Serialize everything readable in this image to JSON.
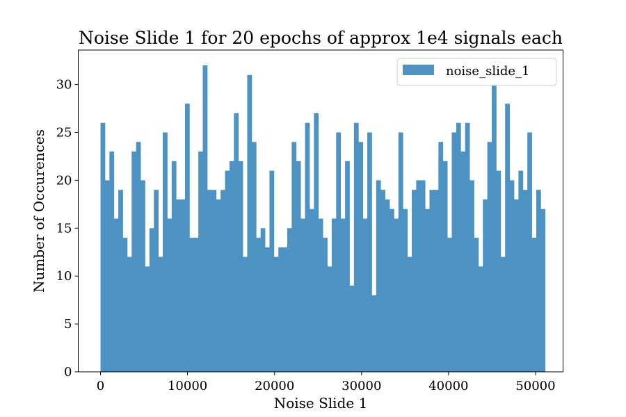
{
  "chart_data": {
    "type": "bar",
    "title": "Noise Slide 1 for 20 epochs of approx 1e4 signals each",
    "xlabel": "Noise Slide 1",
    "ylabel": "Number of Occurences",
    "xlim": [
      -2560,
      53160
    ],
    "ylim": [
      0,
      33.6
    ],
    "x_ticks": [
      0,
      10000,
      20000,
      30000,
      40000,
      50000
    ],
    "y_ticks": [
      0,
      5,
      10,
      15,
      20,
      25,
      30
    ],
    "bin_start": 0,
    "bin_end": 51100,
    "bar_color": "#4c93c3",
    "legend_position": "top-right",
    "series": [
      {
        "name": "noise_slide_1",
        "values": [
          26,
          20,
          23,
          16,
          19,
          14,
          12,
          23,
          24,
          20,
          11,
          15,
          19,
          12,
          25,
          16,
          22,
          18,
          18,
          28,
          14,
          14,
          23,
          32,
          19,
          19,
          18,
          19,
          21,
          22,
          27,
          22,
          12,
          31,
          24,
          14,
          15,
          13,
          21,
          12,
          13,
          13,
          15,
          24,
          22,
          16,
          26,
          17,
          27,
          16,
          14,
          11,
          16,
          25,
          16,
          22,
          9,
          26,
          24,
          16,
          25,
          8,
          20,
          19,
          18,
          17,
          16,
          25,
          17,
          12,
          19,
          20,
          20,
          17,
          19,
          19,
          24,
          22,
          14,
          25,
          26,
          23,
          26,
          20,
          14,
          11,
          18,
          24,
          30,
          21,
          12,
          28,
          20,
          18,
          21,
          19,
          25,
          14,
          19,
          17
        ]
      }
    ]
  }
}
